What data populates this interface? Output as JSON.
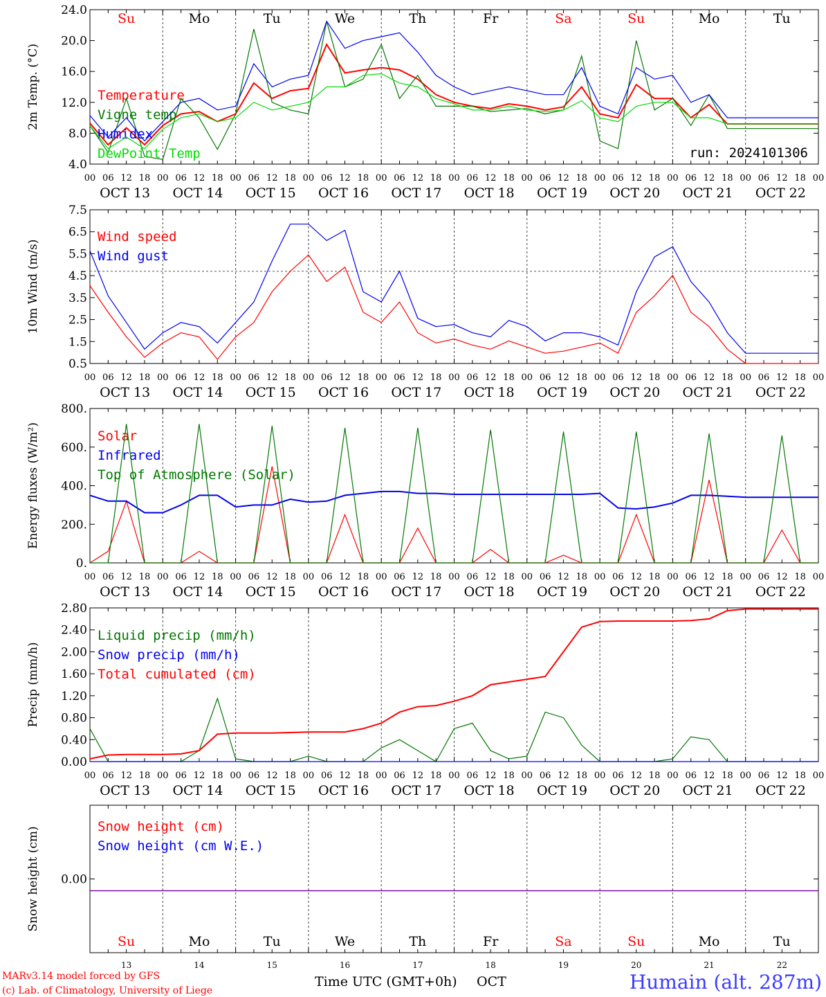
{
  "footer": {
    "credit_line1": "MARv3.14 model forced by GFS",
    "credit_line2": "(c) Lab. of Climatology, University of Liege",
    "axis_title": "Time UTC (GMT+0h)",
    "month": "OCT",
    "station": "Humain (alt. 287m)"
  },
  "colors": {
    "red": "#ff0000",
    "green": "#007700",
    "blue": "#0000ee",
    "lightgreen": "#00dd00",
    "purple": "#8000a0"
  },
  "chart_data": [
    {
      "id": "temp",
      "type": "line",
      "ylabel": "2m Temp. (°C)",
      "ylim": [
        4,
        24
      ],
      "yticks": [
        "4.0",
        "8.0",
        "12.0",
        "16.0",
        "20.0",
        "24.0"
      ],
      "run_label": "run: 2024101306",
      "day_names": [
        "Su",
        "Mo",
        "Tu",
        "We",
        "Th",
        "Fr",
        "Sa",
        "Su",
        "Mo",
        "Tu"
      ],
      "weekend_day_indexes": [
        0,
        6,
        7
      ],
      "date_labels": [
        "OCT 13",
        "OCT 14",
        "OCT 15",
        "OCT 16",
        "OCT 17",
        "OCT 18",
        "OCT 19",
        "OCT 20",
        "OCT 21",
        "OCT 22"
      ],
      "hour_ticks": [
        "00",
        "06",
        "12",
        "18"
      ],
      "x_hours_from_oct13_00": [
        0,
        6,
        12,
        18,
        24,
        30,
        36,
        42,
        48,
        54,
        60,
        66,
        72,
        78,
        84,
        90,
        96,
        102,
        108,
        114,
        120,
        126,
        132,
        138,
        144,
        150,
        156,
        162,
        168,
        174,
        180,
        186,
        192,
        198,
        204,
        210,
        216,
        222,
        228,
        234,
        240
      ],
      "series": [
        {
          "name": "Temperature",
          "color": "#ff0000",
          "y": [
            9.3,
            6.5,
            8.7,
            6.5,
            9.0,
            10.5,
            10.8,
            9.5,
            10.5,
            14.5,
            12.5,
            13.5,
            13.8,
            19.5,
            15.8,
            16.2,
            16.5,
            16.2,
            15.0,
            13.0,
            12.0,
            11.5,
            11.2,
            11.8,
            11.5,
            11.0,
            11.4,
            14.0,
            10.5,
            10.0,
            14.3,
            12.5,
            12.5,
            10.0,
            11.7,
            9.2,
            9.2,
            9.2,
            9.2,
            9.2,
            9.2
          ]
        },
        {
          "name": "Vigne temp",
          "color": "#007700",
          "y": [
            9.0,
            5.5,
            12.5,
            5.0,
            4.6,
            12.5,
            10.0,
            5.9,
            10.5,
            21.5,
            12.0,
            11.0,
            10.5,
            22.5,
            14.0,
            15.0,
            19.5,
            12.5,
            15.5,
            11.5,
            11.5,
            11.5,
            10.8,
            11.0,
            11.2,
            10.5,
            11.0,
            18.0,
            7.0,
            6.0,
            20.0,
            11.0,
            12.5,
            9.0,
            13.0,
            8.6,
            8.6,
            8.6,
            8.6,
            8.6,
            8.6
          ]
        },
        {
          "name": "Humidex",
          "color": "#0000ee",
          "y": [
            10.3,
            7.5,
            10.0,
            7.0,
            9.5,
            12.0,
            12.5,
            11.0,
            11.5,
            17.0,
            14.0,
            15.0,
            15.5,
            22.5,
            19.0,
            20.0,
            20.5,
            21.0,
            18.5,
            15.5,
            14.0,
            13.0,
            13.5,
            14.0,
            13.5,
            13.0,
            13.0,
            16.5,
            11.5,
            10.5,
            16.5,
            15.0,
            15.5,
            12.0,
            13.0,
            10.0,
            10.0,
            10.0,
            10.0,
            10.0,
            10.0
          ]
        },
        {
          "name": "DewPoint Temp",
          "color": "#00dd00",
          "y": [
            9.0,
            6.0,
            7.5,
            6.0,
            8.5,
            10.0,
            10.5,
            9.5,
            10.0,
            12.0,
            11.0,
            11.5,
            12.0,
            14.0,
            14.0,
            15.5,
            15.7,
            14.5,
            14.0,
            12.5,
            11.8,
            11.0,
            11.0,
            11.5,
            11.0,
            10.8,
            11.0,
            12.2,
            10.0,
            9.5,
            11.5,
            12.0,
            12.0,
            10.0,
            10.0,
            9.2,
            9.2,
            9.2,
            9.2,
            9.2,
            9.2
          ]
        }
      ]
    },
    {
      "id": "wind",
      "type": "line",
      "ylabel": "10m Wind (m/s)",
      "ylim": [
        0.5,
        8.0
      ],
      "yticks": [
        "0.5",
        "1.5",
        "2.5",
        "3.5",
        "4.5",
        "5.5",
        "6.5",
        "7.5"
      ],
      "reference_line": 5.0,
      "date_labels": [
        "OCT 13",
        "OCT 14",
        "OCT 15",
        "OCT 16",
        "OCT 17",
        "OCT 18",
        "OCT 19",
        "OCT 20",
        "OCT 21",
        "OCT 22"
      ],
      "hour_ticks": [
        "00",
        "06",
        "12",
        "18"
      ],
      "x_hours_from_oct13_00": [
        0,
        6,
        12,
        18,
        24,
        30,
        36,
        42,
        48,
        54,
        60,
        66,
        72,
        78,
        84,
        90,
        96,
        102,
        108,
        114,
        120,
        126,
        132,
        138,
        144,
        150,
        156,
        162,
        168,
        174,
        180,
        186,
        192,
        198,
        204,
        210,
        216,
        222,
        228,
        234,
        240
      ],
      "series": [
        {
          "name": "Wind speed",
          "color": "#ff0000",
          "y": [
            4.3,
            3.0,
            1.8,
            0.8,
            1.5,
            2.0,
            1.8,
            0.7,
            1.8,
            2.5,
            4.0,
            5.0,
            5.8,
            4.5,
            5.2,
            3.0,
            2.5,
            3.5,
            2.0,
            1.5,
            1.7,
            1.4,
            1.2,
            1.6,
            1.3,
            1.0,
            1.1,
            1.3,
            1.5,
            1.0,
            3.0,
            3.8,
            4.8,
            3.0,
            2.3,
            1.2,
            0.5,
            0.5,
            0.5,
            0.5,
            0.5
          ]
        },
        {
          "name": "Wind gust",
          "color": "#0000ee",
          "y": [
            6.0,
            3.8,
            2.5,
            1.2,
            2.0,
            2.5,
            2.3,
            1.5,
            2.5,
            3.5,
            5.5,
            7.3,
            7.3,
            6.5,
            7.0,
            4.0,
            3.5,
            5.0,
            2.7,
            2.3,
            2.4,
            2.0,
            1.8,
            2.6,
            2.3,
            1.6,
            2.0,
            2.0,
            1.8,
            1.4,
            4.0,
            5.7,
            6.2,
            4.5,
            3.5,
            2.0,
            1.0,
            1.0,
            1.0,
            1.0,
            1.0
          ]
        }
      ]
    },
    {
      "id": "energy",
      "type": "line",
      "ylabel": "Energy fluxes (W/m²)",
      "ylim": [
        0,
        800
      ],
      "yticks": [
        "0.",
        "200.",
        "400.",
        "600.",
        "800."
      ],
      "date_labels": [
        "OCT 13",
        "OCT 14",
        "OCT 15",
        "OCT 16",
        "OCT 17",
        "OCT 18",
        "OCT 19",
        "OCT 20",
        "OCT 21",
        "OCT 22"
      ],
      "hour_ticks": [
        "00",
        "06",
        "12",
        "18"
      ],
      "x_hours_from_oct13_00": [
        0,
        6,
        12,
        18,
        24,
        30,
        36,
        42,
        48,
        54,
        60,
        66,
        72,
        78,
        84,
        90,
        96,
        102,
        108,
        114,
        120,
        126,
        132,
        138,
        144,
        150,
        156,
        162,
        168,
        174,
        180,
        186,
        192,
        198,
        204,
        210,
        216,
        222,
        228,
        234,
        240
      ],
      "series": [
        {
          "name": "Solar",
          "color": "#ff0000",
          "y": [
            0,
            60,
            320,
            0,
            0,
            0,
            60,
            0,
            0,
            0,
            500,
            0,
            0,
            0,
            250,
            0,
            0,
            0,
            180,
            0,
            0,
            0,
            70,
            0,
            0,
            0,
            40,
            0,
            0,
            0,
            250,
            0,
            0,
            0,
            430,
            0,
            0,
            0,
            170,
            0,
            0
          ]
        },
        {
          "name": "Infrared",
          "color": "#0000ee",
          "y": [
            350,
            320,
            320,
            260,
            260,
            300,
            350,
            350,
            290,
            300,
            300,
            330,
            315,
            320,
            350,
            360,
            370,
            370,
            360,
            360,
            355,
            355,
            355,
            355,
            355,
            355,
            355,
            355,
            360,
            285,
            280,
            290,
            310,
            350,
            350,
            345,
            340,
            340,
            340,
            340,
            340
          ]
        },
        {
          "name": "Top of Atmosphere (Solar)",
          "color": "#007700",
          "y": [
            0,
            0,
            720,
            0,
            0,
            0,
            720,
            0,
            0,
            0,
            710,
            0,
            0,
            0,
            700,
            0,
            0,
            0,
            700,
            0,
            0,
            0,
            690,
            0,
            0,
            0,
            680,
            0,
            0,
            0,
            680,
            0,
            0,
            0,
            670,
            0,
            0,
            0,
            660,
            0,
            0
          ]
        }
      ]
    },
    {
      "id": "precip",
      "type": "line",
      "ylabel": "Precip (mm/h)",
      "ylim": [
        0,
        2.8
      ],
      "yticks": [
        "0.00",
        "0.40",
        "0.80",
        "1.20",
        "1.60",
        "2.00",
        "2.40",
        "2.80"
      ],
      "date_labels": [
        "OCT 13",
        "OCT 14",
        "OCT 15",
        "OCT 16",
        "OCT 17",
        "OCT 18",
        "OCT 19",
        "OCT 20",
        "OCT 21",
        "OCT 22"
      ],
      "hour_ticks": [
        "00",
        "06",
        "12",
        "18"
      ],
      "x_hours_from_oct13_00": [
        0,
        6,
        12,
        18,
        24,
        30,
        36,
        42,
        48,
        54,
        60,
        66,
        72,
        78,
        84,
        90,
        96,
        102,
        108,
        114,
        120,
        126,
        132,
        138,
        144,
        150,
        156,
        162,
        168,
        174,
        180,
        186,
        192,
        198,
        204,
        210,
        216,
        222,
        228,
        234,
        240
      ],
      "series": [
        {
          "name": "Liquid precip (mm/h)",
          "color": "#007700",
          "y": [
            0.6,
            0.0,
            0.0,
            0.0,
            0.0,
            0.0,
            0.2,
            1.15,
            0.05,
            0.0,
            0.0,
            0.0,
            0.1,
            0.0,
            0.0,
            0.0,
            0.25,
            0.4,
            0.2,
            0.0,
            0.6,
            0.7,
            0.2,
            0.05,
            0.1,
            0.9,
            0.8,
            0.3,
            0.0,
            0.0,
            0.0,
            0.0,
            0.05,
            0.45,
            0.4,
            0.0,
            0.0,
            0.0,
            0.0,
            0.0,
            0.0
          ]
        },
        {
          "name": "Snow precip (mm/h)",
          "color": "#0000ee",
          "y": [
            0,
            0,
            0,
            0,
            0,
            0,
            0,
            0,
            0,
            0,
            0,
            0,
            0,
            0,
            0,
            0,
            0,
            0,
            0,
            0,
            0,
            0,
            0,
            0,
            0,
            0,
            0,
            0,
            0,
            0,
            0,
            0,
            0,
            0,
            0,
            0,
            0,
            0,
            0,
            0,
            0
          ]
        },
        {
          "name": "Total cumulated (cm)",
          "color": "#ff0000",
          "y": [
            0.05,
            0.12,
            0.13,
            0.13,
            0.13,
            0.14,
            0.2,
            0.5,
            0.52,
            0.52,
            0.52,
            0.53,
            0.54,
            0.54,
            0.54,
            0.6,
            0.7,
            0.9,
            1.0,
            1.02,
            1.1,
            1.2,
            1.4,
            1.45,
            1.5,
            1.55,
            2.0,
            2.45,
            2.55,
            2.56,
            2.56,
            2.56,
            2.56,
            2.57,
            2.6,
            2.75,
            2.78,
            2.78,
            2.78,
            2.78,
            2.78
          ]
        }
      ]
    },
    {
      "id": "snow",
      "type": "line",
      "ylabel": "Snow height (cm)",
      "yticks": [
        "0.00"
      ],
      "day_names": [
        "Su",
        "Mo",
        "Tu",
        "We",
        "Th",
        "Fr",
        "Sa",
        "Su",
        "Mo",
        "Tu"
      ],
      "weekend_day_indexes": [
        0,
        6,
        7
      ],
      "day_numbers": [
        "13",
        "14",
        "15",
        "16",
        "17",
        "18",
        "19",
        "20",
        "21",
        "22"
      ],
      "x_hours_from_oct13_00": [
        0,
        240
      ],
      "series": [
        {
          "name": "Snow height (cm)",
          "color": "#ff0000",
          "y": [
            0,
            0
          ]
        },
        {
          "name": "Snow height (cm W.E.)",
          "color": "#0000ee",
          "y": [
            0,
            0
          ]
        }
      ]
    }
  ]
}
